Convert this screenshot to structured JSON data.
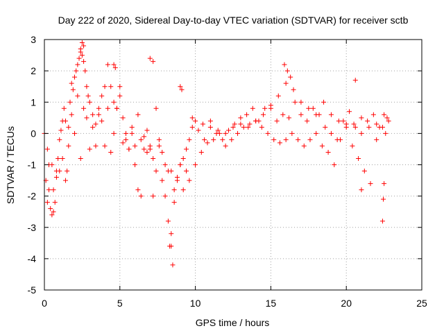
{
  "chart_data": {
    "type": "scatter",
    "title": "Day 222 of 2020, Sidereal Day-to-day VTEC variation (SDTVAR) for receiver sctb",
    "xlabel": "GPS time / hours",
    "ylabel": "SDTVAR / TECUs",
    "xlim": [
      0,
      25
    ],
    "ylim": [
      -5,
      3
    ],
    "xticks": [
      0,
      5,
      10,
      15,
      20,
      25
    ],
    "yticks": [
      -5,
      -4,
      -3,
      -2,
      -1,
      0,
      1,
      2,
      3
    ],
    "grid": true,
    "marker": "+",
    "color": "#ff0000",
    "series": [
      {
        "name": "SDTVAR",
        "x": [
          0.0,
          0.1,
          0.2,
          0.3,
          0.4,
          0.5,
          0.6,
          0.7,
          0.8,
          0.9,
          1.0,
          1.1,
          1.2,
          1.3,
          1.4,
          1.5,
          1.6,
          1.7,
          1.8,
          1.9,
          2.0,
          2.1,
          2.2,
          2.3,
          2.4,
          2.5,
          2.6,
          2.7,
          2.8,
          2.9,
          3.0,
          3.2,
          3.4,
          3.6,
          3.8,
          4.0,
          4.2,
          4.4,
          4.6,
          4.8,
          5.0,
          5.2,
          5.4,
          5.6,
          5.8,
          6.0,
          6.2,
          6.4,
          6.6,
          6.8,
          7.0,
          7.2,
          7.4,
          7.6,
          7.8,
          8.0,
          8.2,
          8.4,
          8.6,
          8.8,
          9.0,
          9.2,
          9.4,
          9.6,
          9.8,
          10.0,
          10.5,
          11.0,
          11.5,
          12.0,
          12.5,
          13.0,
          13.5,
          14.0,
          14.5,
          15.0,
          15.5,
          16.0,
          16.5,
          17.0,
          17.5,
          18.0,
          18.5,
          19.0,
          19.5,
          20.0,
          20.5,
          21.0,
          21.5,
          22.0,
          22.5,
          22.8,
          0.2,
          0.5,
          0.8,
          1.2,
          1.6,
          2.0,
          2.4,
          2.8,
          3.2,
          3.6,
          4.0,
          4.4,
          4.8,
          5.2,
          5.6,
          6.0,
          6.4,
          6.8,
          7.2,
          7.6,
          8.0,
          8.4,
          8.8,
          9.2,
          9.6,
          10.0,
          10.4,
          10.8,
          11.2,
          11.6,
          12.0,
          12.4,
          12.8,
          13.2,
          13.6,
          14.0,
          14.4,
          14.8,
          15.2,
          15.6,
          16.0,
          16.4,
          16.8,
          17.2,
          17.6,
          18.0,
          18.4,
          18.8,
          19.2,
          19.6,
          20.0,
          20.4,
          20.8,
          21.2,
          21.6,
          22.0,
          22.4,
          22.7,
          0.3,
          0.6,
          1.0,
          1.4,
          1.8,
          2.2,
          2.6,
          3.0,
          3.4,
          3.8,
          4.2,
          4.6,
          5.0,
          5.4,
          5.8,
          6.2,
          6.6,
          7.0,
          7.4,
          7.8,
          8.2,
          8.6,
          9.0,
          9.4,
          9.8,
          10.2,
          10.6,
          11.0,
          11.4,
          11.8,
          12.2,
          12.6,
          13.0,
          13.4,
          13.8,
          14.2,
          14.6,
          15.0,
          15.4,
          15.8,
          16.2,
          16.6,
          17.0,
          17.4,
          17.8,
          18.2,
          18.6,
          19.0,
          19.4,
          19.8,
          20.2,
          20.6,
          21.0,
          21.4,
          21.8,
          22.2,
          22.6,
          2.5,
          2.6,
          2.4,
          4.6,
          4.7,
          7.0,
          7.2,
          8.3,
          8.5,
          8.4,
          9.0,
          9.1,
          15.9,
          16.1,
          16.3,
          20.6,
          21.0,
          22.4,
          22.5,
          22.45
        ],
        "y": [
          0.0,
          -1.5,
          -2.2,
          -1.8,
          -2.4,
          -2.6,
          -2.5,
          -2.2,
          -1.2,
          -0.8,
          -0.2,
          0.1,
          0.4,
          0.8,
          -1.5,
          -1.2,
          0.2,
          1.0,
          1.6,
          1.4,
          1.8,
          2.0,
          2.2,
          2.4,
          2.6,
          2.5,
          2.3,
          2.0,
          1.5,
          1.2,
          1.0,
          0.6,
          0.3,
          0.8,
          1.2,
          1.5,
          2.2,
          1.5,
          1.0,
          0.8,
          1.2,
          0.5,
          -0.2,
          -0.5,
          0.0,
          -1.0,
          -1.8,
          -2.0,
          -0.5,
          0.1,
          -0.5,
          -2.0,
          -1.2,
          -0.2,
          -1.5,
          -2.0,
          -2.8,
          -3.6,
          -2.2,
          -1.5,
          -1.0,
          -0.8,
          -0.5,
          -0.2,
          0.2,
          0.4,
          0.3,
          0.2,
          0.1,
          0.0,
          0.2,
          0.3,
          0.2,
          0.4,
          0.6,
          0.8,
          1.2,
          1.6,
          1.4,
          1.0,
          0.8,
          0.6,
          1.0,
          0.6,
          0.4,
          0.2,
          0.3,
          0.5,
          0.2,
          0.3,
          0.6,
          0.4,
          -0.5,
          -1.0,
          -1.4,
          -0.8,
          -0.4,
          0.0,
          -0.8,
          0.5,
          0.2,
          0.6,
          -0.4,
          -0.6,
          0.8,
          -0.3,
          -0.5,
          -0.4,
          -0.2,
          -0.6,
          -0.8,
          -0.4,
          -1.0,
          -1.2,
          -1.4,
          -1.8,
          -1.5,
          -1.0,
          -0.6,
          -0.3,
          -0.2,
          0.0,
          -0.4,
          -0.2,
          0.0,
          0.2,
          0.3,
          0.4,
          0.2,
          0.0,
          -0.2,
          -0.3,
          -0.2,
          0.0,
          -0.2,
          -0.4,
          -0.2,
          0.0,
          -0.4,
          -0.6,
          -1.0,
          -0.2,
          0.3,
          -0.4,
          -0.8,
          -1.2,
          -1.6,
          -0.2,
          0.2,
          0.5,
          -1.0,
          -1.8,
          -1.2,
          0.4,
          0.6,
          1.2,
          0.8,
          -0.5,
          -0.4,
          0.4,
          0.8,
          0.0,
          1.5,
          0.0,
          0.2,
          0.6,
          -0.1,
          -0.4,
          0.8,
          -0.6,
          -1.2,
          -1.8,
          -1.0,
          -1.2,
          0.5,
          0.1,
          -0.2,
          0.4,
          0.0,
          -0.2,
          0.1,
          0.3,
          0.5,
          0.6,
          0.8,
          0.4,
          0.8,
          0.9,
          0.4,
          0.6,
          0.5,
          1.0,
          0.6,
          0.4,
          0.8,
          0.6,
          0.2,
          0.0,
          -0.2,
          0.4,
          0.7,
          0.2,
          0.0,
          0.4,
          0.6,
          0.2,
          0.0,
          2.9,
          2.8,
          2.7,
          2.2,
          2.1,
          2.4,
          2.3,
          -3.6,
          -4.2,
          -3.2,
          1.5,
          1.4,
          2.2,
          2.0,
          1.8,
          1.7,
          -1.8,
          -2.8,
          -1.6,
          -2.1
        ]
      }
    ]
  }
}
